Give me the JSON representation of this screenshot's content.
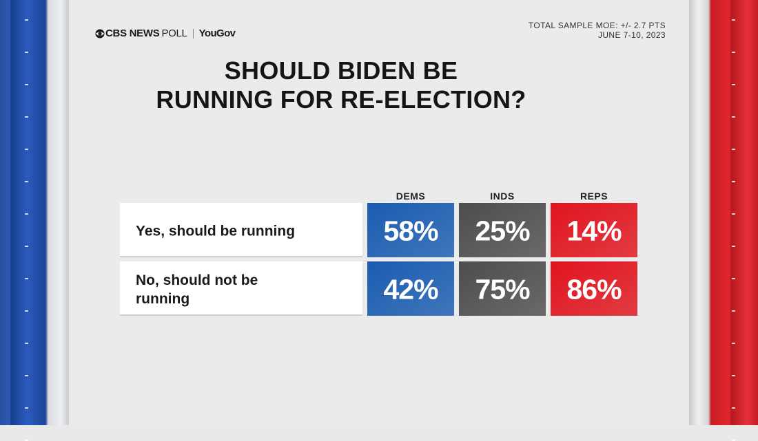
{
  "brand": {
    "network": "CBS NEWS",
    "poll": "POLL",
    "partner": "YouGov"
  },
  "meta": {
    "moe": "TOTAL SAMPLE MOE: +/- 2.7 PTS",
    "dates": "JUNE 7-10, 2023"
  },
  "title_lines": [
    "SHOULD BIDEN BE",
    "RUNNING FOR RE-ELECTION?"
  ],
  "colors": {
    "dems": "#1a5cb0",
    "inds": "#4d4d4d",
    "reps": "#e0141e"
  },
  "chart_data": {
    "type": "table",
    "title": "SHOULD BIDEN BE RUNNING FOR RE-ELECTION?",
    "columns": [
      "DEMS",
      "INDS",
      "REPS"
    ],
    "rows": [
      {
        "label_lines": [
          "Yes, should be running"
        ],
        "values": [
          58,
          25,
          14
        ],
        "labels": [
          "58%",
          "25%",
          "14%"
        ]
      },
      {
        "label_lines": [
          "No, should not be",
          "running"
        ],
        "values": [
          42,
          75,
          86
        ],
        "labels": [
          "42%",
          "75%",
          "86%"
        ]
      }
    ]
  }
}
